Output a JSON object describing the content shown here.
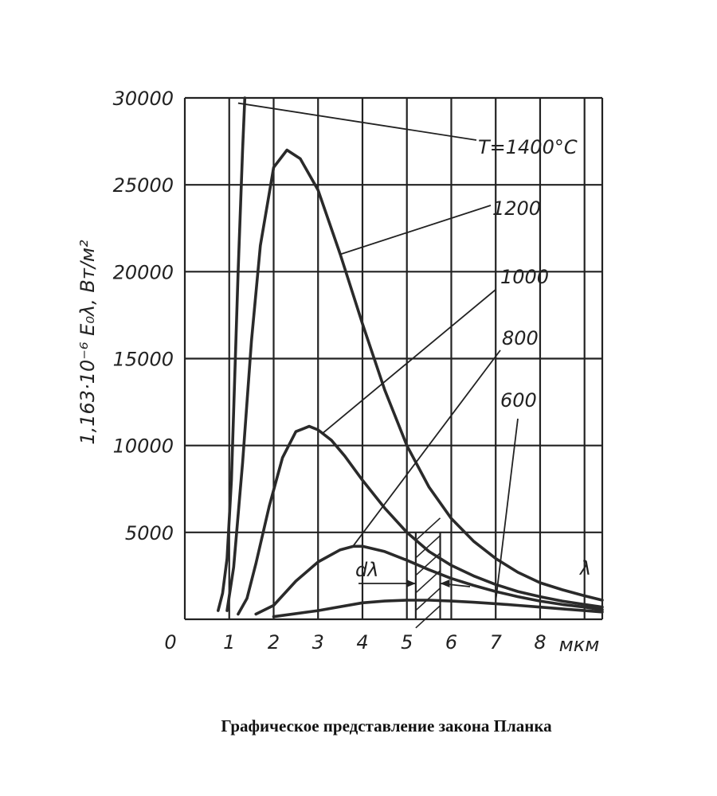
{
  "caption": "Графическое представление закона Планка",
  "chart_data": {
    "type": "line",
    "title": "",
    "ylabel": "1,163·10⁻⁶ E₀λ, Вт/м²",
    "xlabel": "мкм",
    "xlim": [
      0,
      9.4
    ],
    "ylim": [
      0,
      30000
    ],
    "x_ticks": [
      0,
      1,
      2,
      3,
      4,
      5,
      6,
      7,
      8
    ],
    "x_tick_labels": [
      "0",
      "1",
      "2",
      "3",
      "4",
      "5",
      "6",
      "7",
      "8"
    ],
    "y_ticks": [
      5000,
      10000,
      15000,
      20000,
      25000,
      30000
    ],
    "y_tick_labels": [
      "5000",
      "10000",
      "15000",
      "20000",
      "25000",
      "30000"
    ],
    "grid": true,
    "series": [
      {
        "name": "T=1400°C",
        "x": [
          0.75,
          0.85,
          0.95,
          1.05,
          1.1,
          1.2,
          1.3,
          1.35
        ],
        "y": [
          500,
          1500,
          3500,
          8000,
          12000,
          20000,
          27000,
          30000
        ]
      },
      {
        "name": "1200",
        "x": [
          0.95,
          1.1,
          1.3,
          1.5,
          1.7,
          2.0,
          2.3,
          2.6,
          3.0,
          3.5,
          4.0,
          4.5,
          5.0,
          5.5,
          6.0,
          6.5,
          7.0,
          7.5,
          8.0,
          8.5,
          9.0,
          9.4
        ],
        "y": [
          500,
          3000,
          9000,
          16000,
          21500,
          26000,
          27000,
          26500,
          24700,
          21000,
          17000,
          13200,
          10000,
          7600,
          5800,
          4500,
          3500,
          2700,
          2100,
          1700,
          1350,
          1100
        ]
      },
      {
        "name": "1000",
        "x": [
          1.2,
          1.4,
          1.6,
          1.9,
          2.2,
          2.5,
          2.8,
          3.0,
          3.3,
          3.6,
          4.0,
          4.5,
          5.0,
          5.5,
          6.0,
          6.5,
          7.0,
          7.5,
          8.0,
          8.5,
          9.0,
          9.4
        ],
        "y": [
          300,
          1200,
          3200,
          6500,
          9300,
          10800,
          11100,
          10900,
          10300,
          9400,
          8000,
          6400,
          5000,
          3900,
          3100,
          2500,
          2000,
          1600,
          1300,
          1050,
          850,
          700
        ]
      },
      {
        "name": "800",
        "x": [
          1.6,
          2.0,
          2.5,
          3.0,
          3.5,
          3.8,
          4.0,
          4.5,
          5.0,
          5.5,
          6.0,
          6.5,
          7.0,
          7.5,
          8.0,
          8.5,
          9.0,
          9.4
        ],
        "y": [
          300,
          800,
          2200,
          3300,
          4000,
          4200,
          4200,
          3900,
          3400,
          2850,
          2350,
          1950,
          1600,
          1300,
          1050,
          850,
          700,
          550
        ]
      },
      {
        "name": "600",
        "x": [
          2.0,
          3.0,
          4.0,
          4.5,
          5.0,
          5.5,
          6.0,
          6.5,
          7.0,
          7.5,
          8.0,
          8.5,
          9.0,
          9.4
        ],
        "y": [
          150,
          500,
          950,
          1050,
          1100,
          1100,
          1050,
          980,
          900,
          800,
          700,
          600,
          500,
          420
        ]
      }
    ],
    "annotations": {
      "curve_labels": [
        "T=1400°C",
        "1200",
        "1000",
        "800",
        "600"
      ],
      "lambda_label": "λ",
      "dlambda_label": "dλ",
      "dlambda_band": [
        5.2,
        5.75
      ]
    }
  }
}
